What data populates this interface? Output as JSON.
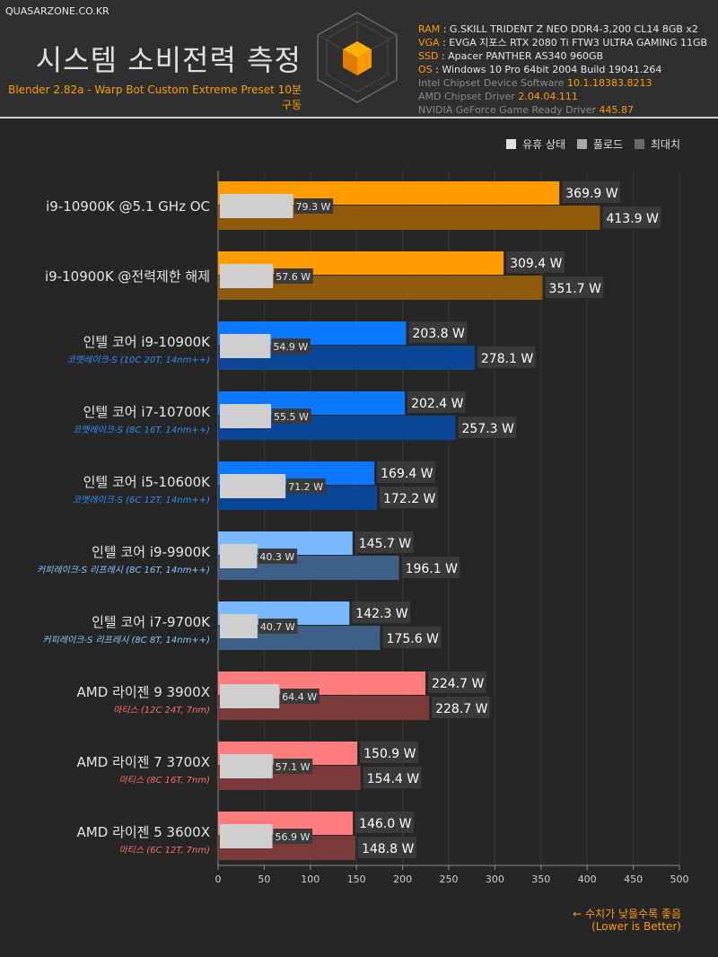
{
  "header": {
    "site": "QUASARZONE.CO.KR",
    "title": "시스템 소비전력 측정",
    "subtitle": "Blender 2.82a - Warp Bot Custom Extreme Preset 10분 구동",
    "specs": [
      {
        "key": "RAM",
        "value": "G.SKILL TRIDENT Z NEO DDR4-3,200 CL14 8GB x2"
      },
      {
        "key": "VGA",
        "value": "EVGA 지포스 RTX 2080 Ti FTW3 ULTRA GAMING 11GB"
      },
      {
        "key": "SSD",
        "value": "Apacer PANTHER AS340 960GB"
      },
      {
        "key": "OS",
        "value": "Windows 10 Pro 64bit 2004 Build 19041.264"
      }
    ],
    "drivers": [
      {
        "label": "Intel Chipset Device Software",
        "version": "10.1.18383.8213"
      },
      {
        "label": "AMD Chipset Driver",
        "version": "2.04.04.111"
      },
      {
        "label": "NVIDIA GeForce Game Ready Driver",
        "version": "445.87"
      }
    ]
  },
  "legend": [
    {
      "label": "유휴 상태",
      "color": "#e0e0e0"
    },
    {
      "label": "풀로드",
      "color": "#a8a8a8"
    },
    {
      "label": "최대치",
      "color": "#6a6a6a"
    }
  ],
  "note": {
    "line1": "← 수치가 낮을수록 좋음",
    "line2": "(Lower is Better)"
  },
  "chart_data": {
    "type": "bar",
    "orientation": "horizontal",
    "title": "시스템 소비전력 측정",
    "unit": "W",
    "xlim": [
      0,
      500
    ],
    "xticks": [
      0,
      50,
      100,
      150,
      200,
      250,
      300,
      350,
      400,
      450,
      500
    ],
    "series_names": [
      "유휴 상태",
      "풀로드",
      "최대치"
    ],
    "categories": [
      {
        "name": "i9-10900K @5.1 GHz OC",
        "sub": "",
        "idle": 79.3,
        "load": 369.9,
        "max": 413.9,
        "load_color": "#ff9c00",
        "max_color": "#8f5a09",
        "sub_color": ""
      },
      {
        "name": "i9-10900K @전력제한 해제",
        "sub": "",
        "idle": 57.6,
        "load": 309.4,
        "max": 351.7,
        "load_color": "#ff9c00",
        "max_color": "#8f5a09",
        "sub_color": ""
      },
      {
        "name": "인텔 코어 i9-10900K",
        "sub": "코멧레이크-S (10C 20T, 14nm++)",
        "idle": 54.9,
        "load": 203.8,
        "max": 278.1,
        "load_color": "#0a78ff",
        "max_color": "#0b4596",
        "sub_color": "#2f8dff"
      },
      {
        "name": "인텔 코어 i7-10700K",
        "sub": "코멧레이크-S (8C 16T, 14nm++)",
        "idle": 55.5,
        "load": 202.4,
        "max": 257.3,
        "load_color": "#0a78ff",
        "max_color": "#0b4596",
        "sub_color": "#2f8dff"
      },
      {
        "name": "인텔 코어 i5-10600K",
        "sub": "코멧레이크-S (6C 12T, 14nm++)",
        "idle": 71.2,
        "load": 169.4,
        "max": 172.2,
        "load_color": "#0a78ff",
        "max_color": "#0b4596",
        "sub_color": "#2f8dff"
      },
      {
        "name": "인텔 코어 i9-9900K",
        "sub": "커피레이크-S 리프레시 (8C 16T, 14nm++)",
        "idle": 40.3,
        "load": 145.7,
        "max": 196.1,
        "load_color": "#7ab9ff",
        "max_color": "#3e5f86",
        "sub_color": "#8cc3ff"
      },
      {
        "name": "인텔 코어 i7-9700K",
        "sub": "커피레이크-S 리프레시 (8C 8T, 14nm++)",
        "idle": 40.7,
        "load": 142.3,
        "max": 175.6,
        "load_color": "#7ab9ff",
        "max_color": "#3e5f86",
        "sub_color": "#8cc3ff"
      },
      {
        "name": "AMD 라이젠 9 3900X",
        "sub": "마티스 (12C 24T, 7nm)",
        "idle": 64.4,
        "load": 224.7,
        "max": 228.7,
        "load_color": "#ff7c7c",
        "max_color": "#7a3a3a",
        "sub_color": "#ff6b6b"
      },
      {
        "name": "AMD 라이젠 7 3700X",
        "sub": "마티스 (8C 16T, 7nm)",
        "idle": 57.1,
        "load": 150.9,
        "max": 154.4,
        "load_color": "#ff7c7c",
        "max_color": "#7a3a3a",
        "sub_color": "#ff6b6b"
      },
      {
        "name": "AMD 라이젠 5 3600X",
        "sub": "마티스 (6C 12T, 7nm)",
        "idle": 56.9,
        "load": 146.0,
        "max": 148.8,
        "load_color": "#ff7c7c",
        "max_color": "#7a3a3a",
        "sub_color": "#ff6b6b"
      }
    ]
  }
}
